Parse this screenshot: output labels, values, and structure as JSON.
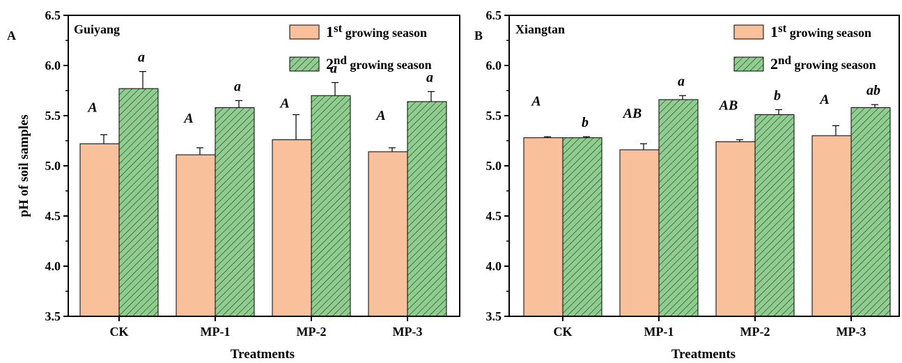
{
  "colors": {
    "season1": "#f9c09c",
    "season2": "#8fce8f",
    "hatch": "#2d3d2d",
    "axis": "#000000"
  },
  "chart_data": [
    {
      "type": "bar",
      "panel": "A",
      "site": "Guiyang",
      "xlabel": "Treatments",
      "ylabel": "pH of soil samples",
      "ylim": [
        3.5,
        6.5
      ],
      "yticks": [
        "3.5",
        "4.0",
        "4.5",
        "5.0",
        "5.5",
        "6.0",
        "6.5"
      ],
      "categories": [
        "CK",
        "MP-1",
        "MP-2",
        "MP-3"
      ],
      "legend_position": "top-right",
      "series": [
        {
          "name_base": "1",
          "name_sup": "st",
          "name_rest": " growing season",
          "pattern": "solid",
          "values": [
            5.22,
            5.11,
            5.26,
            5.14
          ],
          "errors": [
            0.09,
            0.07,
            0.25,
            0.04
          ],
          "letters": [
            "A",
            "A",
            "A",
            "A"
          ]
        },
        {
          "name_base": "2",
          "name_sup": "nd",
          "name_rest": " growing season",
          "pattern": "hatched",
          "values": [
            5.77,
            5.58,
            5.7,
            5.64
          ],
          "errors": [
            0.17,
            0.07,
            0.13,
            0.1
          ],
          "letters": [
            "a",
            "a",
            "a",
            "a"
          ]
        }
      ]
    },
    {
      "type": "bar",
      "panel": "B",
      "site": "Xiangtan",
      "xlabel": "Treatments",
      "ylabel": "",
      "ylim": [
        3.5,
        6.5
      ],
      "yticks": [
        "3.5",
        "4.0",
        "4.5",
        "5.0",
        "5.5",
        "6.0",
        "6.5"
      ],
      "categories": [
        "CK",
        "MP-1",
        "MP-2",
        "MP-3"
      ],
      "legend_position": "top-right",
      "series": [
        {
          "name_base": "1",
          "name_sup": "st",
          "name_rest": " growing season",
          "pattern": "solid",
          "values": [
            5.28,
            5.16,
            5.24,
            5.3
          ],
          "errors": [
            0.01,
            0.06,
            0.02,
            0.1
          ],
          "letters": [
            "A",
            "AB",
            "AB",
            "A"
          ]
        },
        {
          "name_base": "2",
          "name_sup": "nd",
          "name_rest": " growing season",
          "pattern": "hatched",
          "values": [
            5.28,
            5.66,
            5.51,
            5.58
          ],
          "errors": [
            0.01,
            0.04,
            0.05,
            0.03
          ],
          "letters": [
            "b",
            "a",
            "b",
            "ab"
          ]
        }
      ]
    }
  ]
}
